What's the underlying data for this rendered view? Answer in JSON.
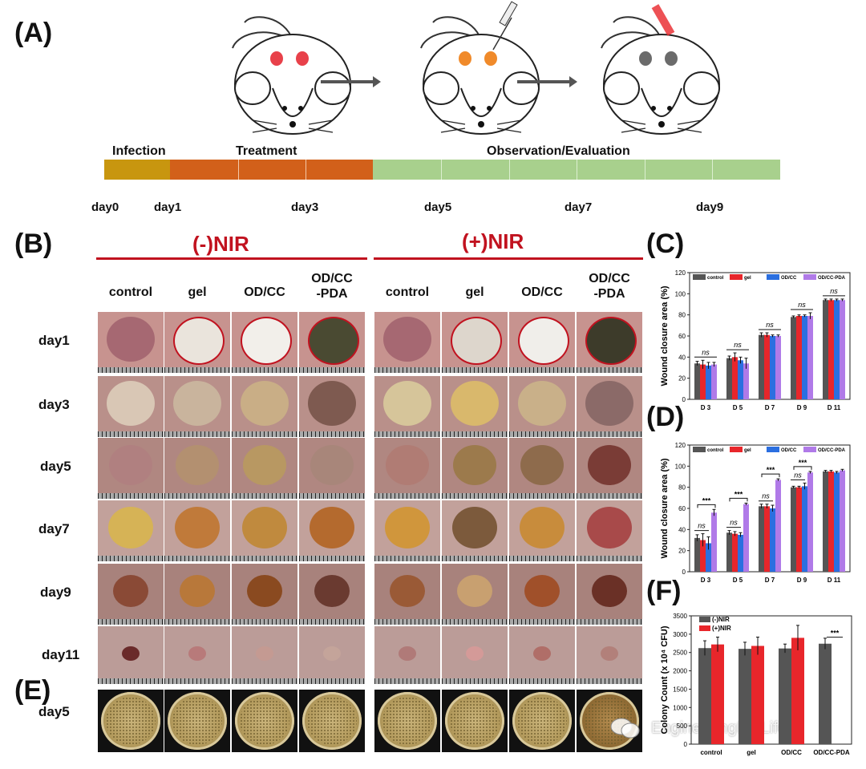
{
  "panels": {
    "a": "(A)",
    "b": "(B)",
    "c": "(C)",
    "d": "(D)",
    "e": "(E)",
    "f": "(F)"
  },
  "timeline": {
    "segments": [
      "Infection",
      "Treatment",
      "Observation/Evaluation"
    ],
    "days": [
      "day0",
      "day1",
      "day3",
      "day5",
      "day7",
      "day9"
    ],
    "colors": {
      "infection": "#c8960f",
      "treatment": "#d2601a",
      "observation": "#a8d08d"
    }
  },
  "groups": {
    "minus": "(-)NIR",
    "plus": "(+)NIR"
  },
  "columns": [
    "control",
    "gel",
    "OD/CC",
    "OD/CC\n-PDA",
    "control",
    "gel",
    "OD/CC",
    "OD/CC\n-PDA"
  ],
  "rows": [
    "day1",
    "day3",
    "day5",
    "day7",
    "day9",
    "day11",
    "day5"
  ],
  "watermark": "EngineeringForLife",
  "legend4": [
    "control",
    "gel",
    "OD/CC",
    "OD/CC-PDA"
  ],
  "series_colors": [
    "#555555",
    "#e8262b",
    "#2b6fe0",
    "#b07ae8"
  ],
  "chart_data": [
    {
      "id": "C",
      "type": "bar",
      "ylabel": "Wound closure area (%)",
      "ylim": [
        0,
        120
      ],
      "yticks": [
        0,
        20,
        40,
        60,
        80,
        100,
        120
      ],
      "categories": [
        "D 3",
        "D 5",
        "D 7",
        "D 9",
        "D 11"
      ],
      "series": [
        {
          "name": "control",
          "values": [
            34,
            39,
            61,
            78,
            94
          ],
          "err": [
            2,
            2,
            2,
            1,
            1
          ]
        },
        {
          "name": "gel",
          "values": [
            33,
            40,
            61,
            79,
            94
          ],
          "err": [
            4,
            4,
            2,
            1,
            1
          ]
        },
        {
          "name": "OD/CC",
          "values": [
            32,
            37,
            60,
            79,
            94
          ],
          "err": [
            3,
            3,
            1,
            1,
            1
          ]
        },
        {
          "name": "OD/CC-PDA",
          "values": [
            33,
            34,
            60,
            79,
            94
          ],
          "err": [
            2,
            5,
            1,
            3,
            1
          ]
        }
      ],
      "annotations": [
        "ns",
        "ns",
        "ns",
        "ns",
        "ns"
      ]
    },
    {
      "id": "D",
      "type": "bar",
      "ylabel": "Wound closure area (%)",
      "ylim": [
        0,
        120
      ],
      "yticks": [
        0,
        20,
        40,
        60,
        80,
        100,
        120
      ],
      "categories": [
        "D 3",
        "D 5",
        "D 7",
        "D 9",
        "D 11"
      ],
      "series": [
        {
          "name": "control",
          "values": [
            32,
            37,
            62,
            80,
            95
          ],
          "err": [
            3,
            2,
            2,
            1,
            1
          ]
        },
        {
          "name": "gel",
          "values": [
            30,
            36,
            62,
            80,
            95
          ],
          "err": [
            6,
            2,
            2,
            1,
            1
          ]
        },
        {
          "name": "OD/CC",
          "values": [
            27,
            35,
            60,
            81,
            94
          ],
          "err": [
            6,
            2,
            3,
            3,
            1
          ]
        },
        {
          "name": "OD/CC-PDA",
          "values": [
            56,
            64,
            87,
            94,
            96
          ],
          "err": [
            3,
            1,
            1,
            1,
            1
          ]
        }
      ],
      "annotations_ns": [
        "ns",
        "ns",
        "ns",
        "ns"
      ],
      "annotations_sig": [
        "***",
        "***",
        "***",
        "***"
      ]
    },
    {
      "id": "F",
      "type": "bar",
      "ylabel": "Colony Count (x 10⁴ CFU)",
      "ylim": [
        0,
        3500
      ],
      "yticks": [
        0,
        500,
        1000,
        1500,
        2000,
        2500,
        3000,
        3500
      ],
      "categories": [
        "control",
        "gel",
        "OD/CC",
        "OD/CC-PDA"
      ],
      "series": [
        {
          "name": "(-)NIR",
          "values": [
            2620,
            2600,
            2610,
            2740
          ],
          "err": [
            200,
            180,
            120,
            150
          ]
        },
        {
          "name": "(+)NIR",
          "values": [
            2720,
            2680,
            2900,
            0
          ],
          "err": [
            200,
            240,
            340,
            0
          ]
        }
      ],
      "annotations": [
        "***"
      ]
    }
  ]
}
